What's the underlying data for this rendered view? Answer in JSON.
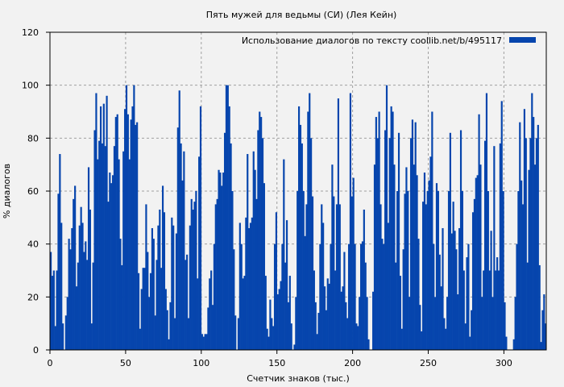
{
  "chart_data": {
    "type": "bar",
    "title": "Пять мужей для ведьмы (СИ) (Лея Кейн)",
    "xlabel": "Счетчик знаков (тыс.)",
    "ylabel": "% диалогов",
    "xlim": [
      0,
      328
    ],
    "ylim": [
      0,
      120
    ],
    "x_ticks": [
      0,
      50,
      100,
      150,
      200,
      250,
      300
    ],
    "y_ticks": [
      0,
      20,
      40,
      60,
      80,
      100,
      120
    ],
    "grid": true,
    "legend_position": "top-right",
    "series": [
      {
        "name": "Использование диалогов по тексту  coollib.net/b/495117",
        "color": "#0645ad",
        "values": [
          37,
          28,
          30,
          9,
          30,
          59,
          74,
          48,
          10,
          0,
          13,
          20,
          42,
          38,
          46,
          57,
          62,
          24,
          33,
          47,
          54,
          48,
          37,
          41,
          34,
          69,
          53,
          10,
          33,
          83,
          97,
          72,
          79,
          92,
          78,
          93,
          77,
          96,
          56,
          67,
          63,
          66,
          77,
          88,
          89,
          72,
          42,
          32,
          75,
          91,
          100,
          89,
          72,
          87,
          92,
          100,
          85,
          86,
          29,
          8,
          23,
          31,
          31,
          55,
          37,
          20,
          29,
          46,
          42,
          13,
          34,
          47,
          53,
          31,
          62,
          52,
          23,
          15,
          4,
          18,
          50,
          47,
          12,
          44,
          84,
          98,
          78,
          64,
          75,
          34,
          36,
          12,
          47,
          57,
          53,
          56,
          60,
          27,
          73,
          92,
          6,
          5,
          6,
          6,
          16,
          27,
          30,
          17,
          40,
          55,
          57,
          68,
          67,
          62,
          67,
          82,
          100,
          100,
          92,
          78,
          60,
          38,
          13,
          0,
          12,
          48,
          40,
          27,
          28,
          50,
          74,
          46,
          48,
          50,
          75,
          68,
          57,
          83,
          90,
          88,
          80,
          63,
          28,
          8,
          5,
          19,
          12,
          9,
          40,
          52,
          21,
          23,
          26,
          40,
          72,
          33,
          49,
          18,
          28,
          10,
          0,
          2,
          20,
          60,
          92,
          85,
          78,
          60,
          43,
          55,
          90,
          97,
          80,
          58,
          30,
          18,
          6,
          14,
          40,
          55,
          48,
          24,
          15,
          27,
          25,
          40,
          70,
          58,
          30,
          55,
          95,
          55,
          22,
          24,
          37,
          18,
          12,
          40,
          97,
          58,
          65,
          40,
          10,
          9,
          20,
          40,
          41,
          53,
          33,
          20,
          4,
          0,
          0,
          22,
          70,
          88,
          80,
          90,
          55,
          42,
          40,
          83,
          100,
          48,
          80,
          92,
          90,
          70,
          33,
          60,
          82,
          28,
          8,
          38,
          59,
          69,
          60,
          20,
          80,
          87,
          70,
          86,
          66,
          42,
          17,
          7,
          56,
          67,
          55,
          60,
          64,
          73,
          90,
          40,
          20,
          63,
          60,
          36,
          24,
          46,
          12,
          8,
          20,
          60,
          82,
          44,
          56,
          45,
          38,
          21,
          46,
          83,
          60,
          30,
          10,
          35,
          40,
          5,
          15,
          52,
          57,
          65,
          66,
          89,
          70,
          20,
          30,
          79,
          97,
          60,
          30,
          45,
          20,
          77,
          30,
          35,
          30,
          78,
          94,
          60,
          18,
          5,
          0,
          0,
          0,
          0,
          4,
          20,
          40,
          60,
          86,
          64,
          55,
          91,
          80,
          33,
          68,
          80,
          97,
          88,
          70,
          80,
          85,
          32,
          3,
          15,
          21,
          10
        ]
      }
    ]
  }
}
